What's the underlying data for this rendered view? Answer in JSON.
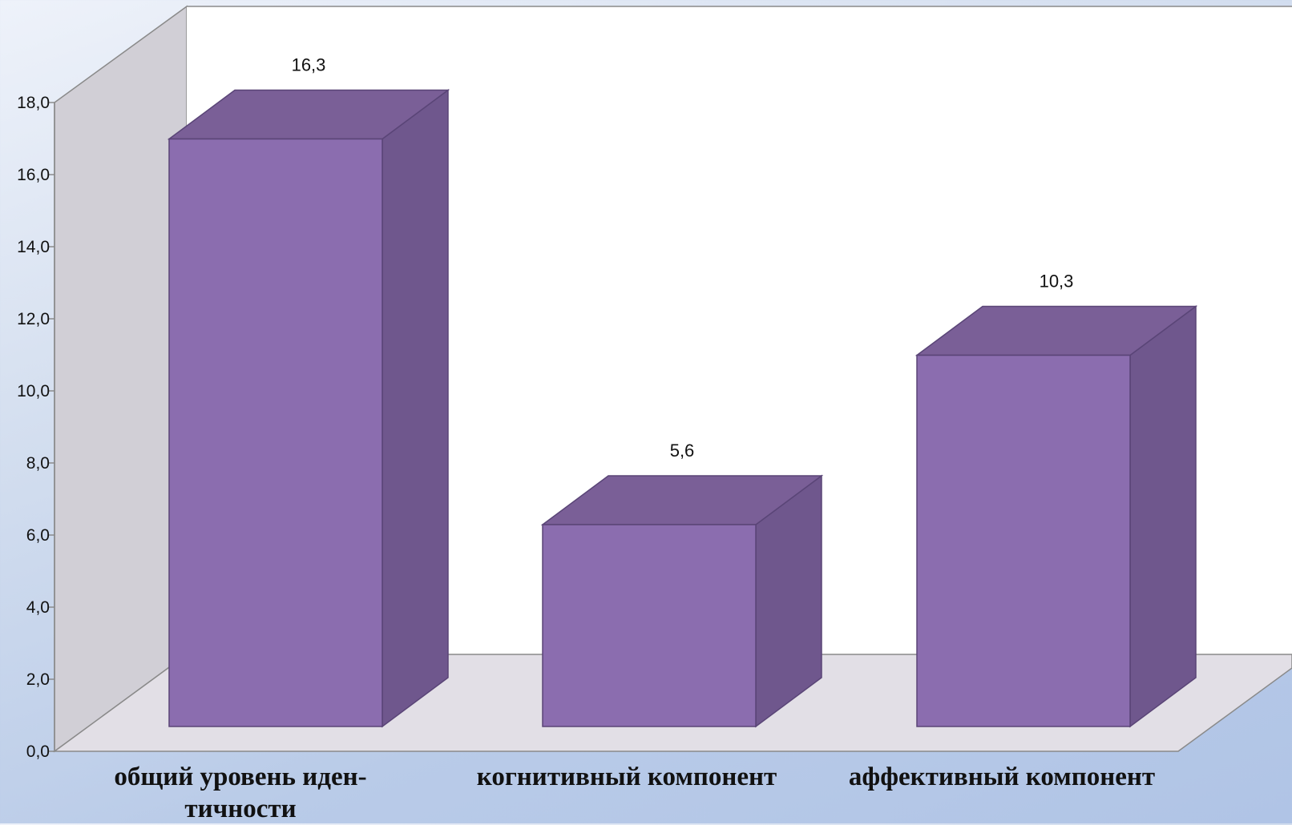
{
  "chart_data": {
    "type": "bar",
    "categories": [
      "общий уровень иден-тичности",
      "когнитивный компонент",
      "аффективный компонент"
    ],
    "category_lines": [
      [
        "общий уровень иден-",
        "тичности"
      ],
      [
        "когнитивный компонент"
      ],
      [
        "аффективный компонент"
      ]
    ],
    "values": [
      16.3,
      5.6,
      10.3
    ],
    "value_labels": [
      "16,3",
      "5,6",
      "10,3"
    ],
    "yticks": [
      "0,0",
      "2,0",
      "4,0",
      "6,0",
      "8,0",
      "10,0",
      "12,0",
      "14,0",
      "16,0",
      "18,0"
    ],
    "ylim": [
      0,
      18
    ],
    "ytick_step": 2,
    "title": "",
    "xlabel": "",
    "ylabel": "",
    "grid": false,
    "legend": "none",
    "style": "3d-column",
    "colors": {
      "bar_front": "#8b6daf",
      "bar_top": "#7a5f97",
      "bar_side": "#6f578d",
      "bar_edge": "#5a4577",
      "back_wall": "#ffffff",
      "side_wall": "#d1cfd6",
      "floor": "#e2dfe6",
      "axis": "#8a8a8a"
    }
  }
}
